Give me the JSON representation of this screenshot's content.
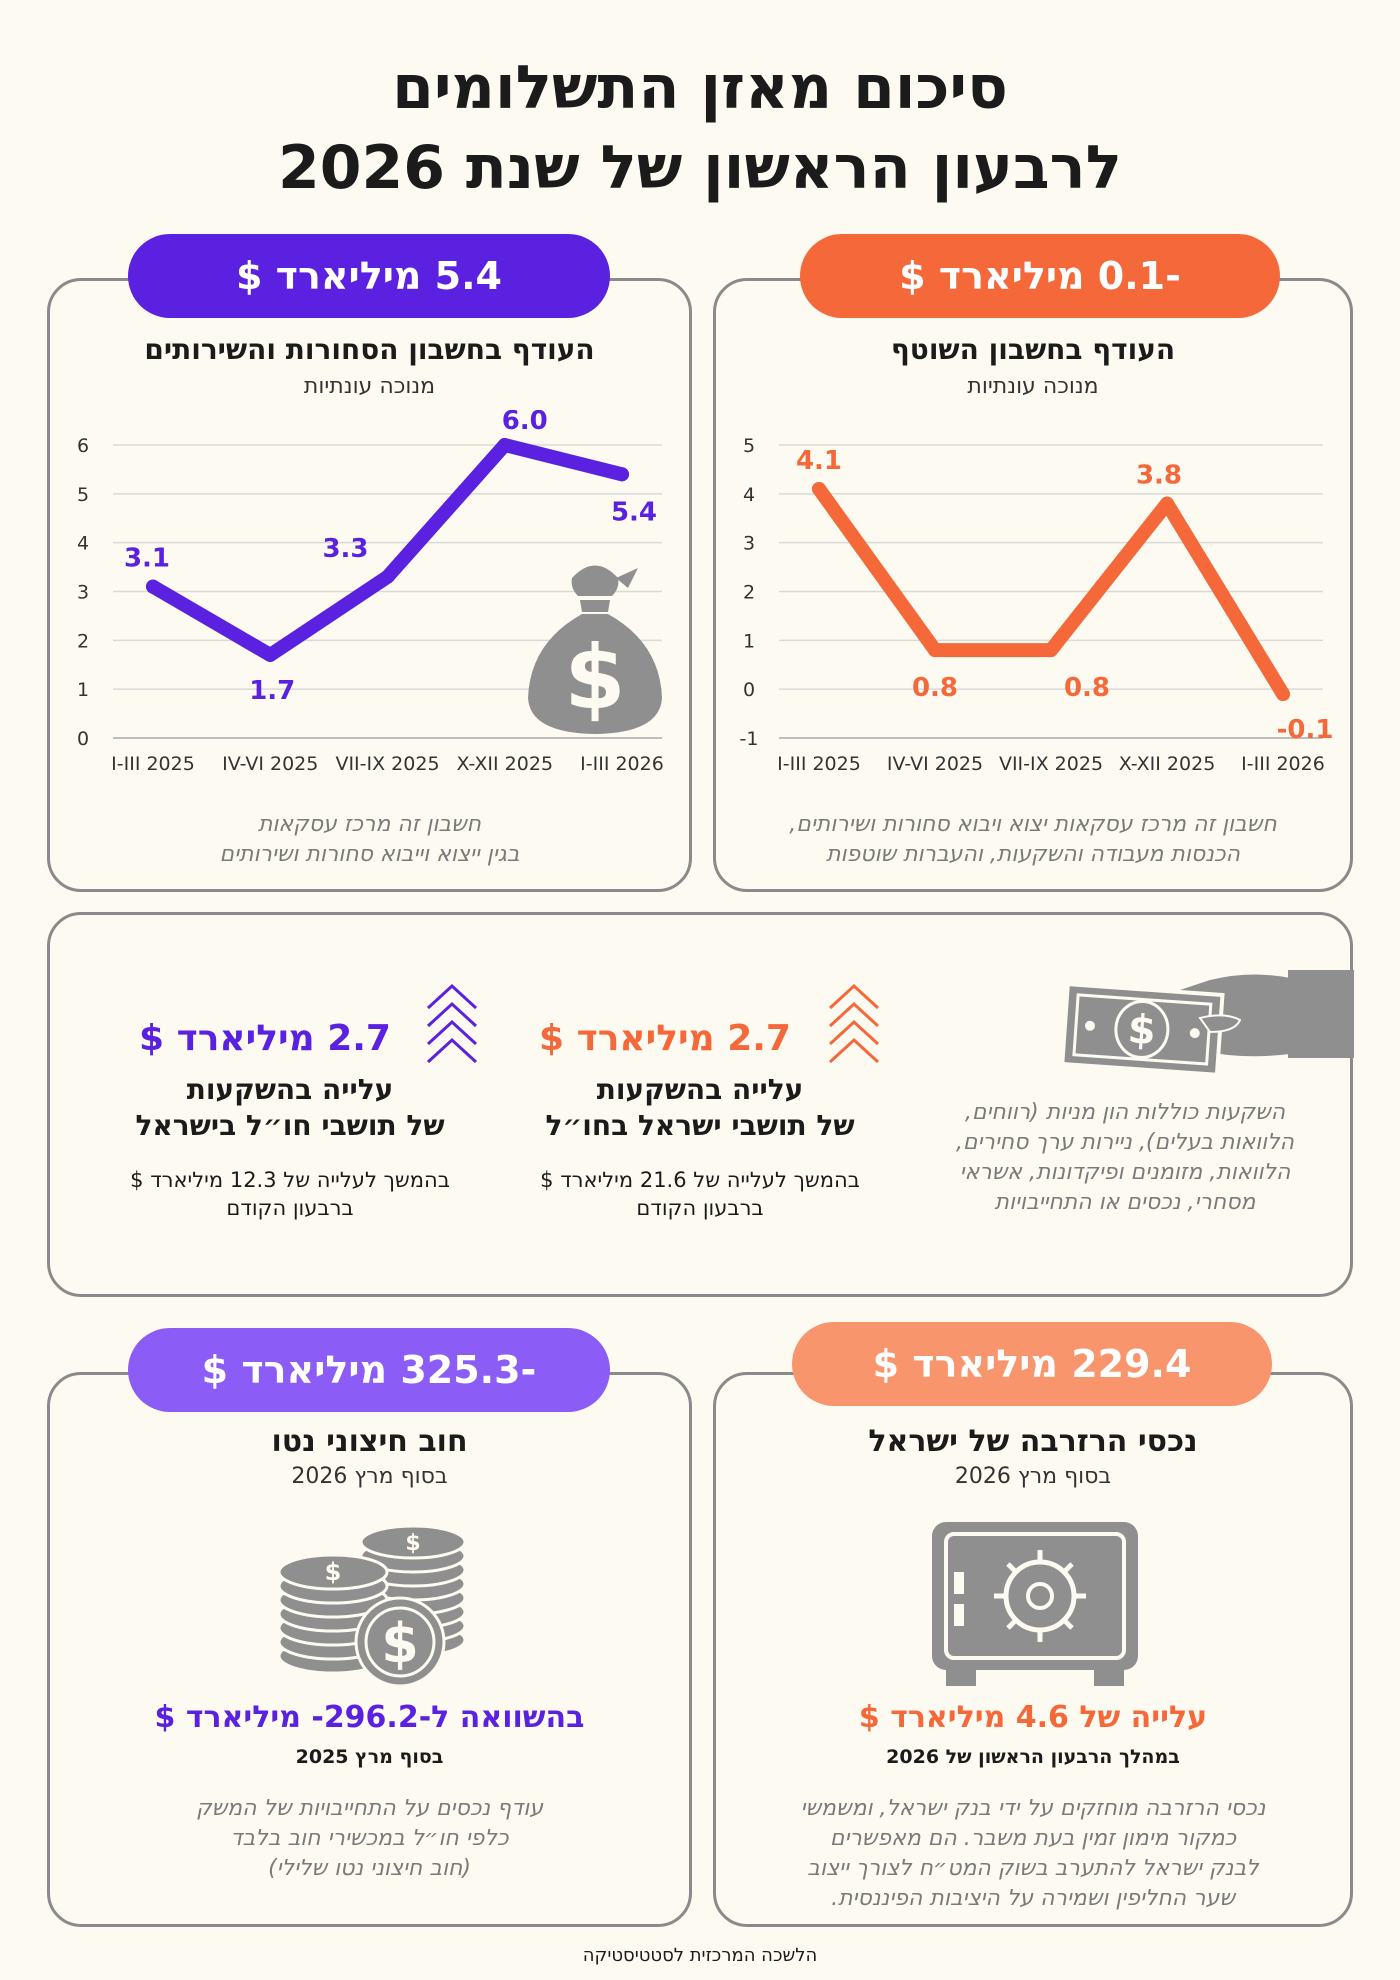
{
  "title_line1": "סיכום מאזן התשלומים",
  "title_line2": "לרבעון הראשון של שנת 2026",
  "footer": "הלשכה המרכזית לסטטיסטיקה",
  "colors": {
    "orange": "#f4683a",
    "purple": "#5b21e0",
    "light_purple": "#8b5cf6",
    "light_orange": "#f8956c",
    "gray_icon": "#8f8f8f"
  },
  "current_account": {
    "pill": "-0.1 מיליארד $",
    "title": "העודף בחשבון השוטף",
    "subtitle": "מנוכה עונתיות",
    "note_line1": "חשבון זה מרכז עסקאות יצוא ויבוא סחורות ושירותים,",
    "note_line2": "הכנסות מעבודה והשקעות, והעברות שוטפות"
  },
  "goods_services": {
    "pill": "5.4 מיליארד $",
    "title": "העודף בחשבון הסחורות והשירותים",
    "subtitle": "מנוכה עונתיות",
    "note_line1": "חשבון זה מרכז עסקאות",
    "note_line2": "בגין ייצוא וייבוא סחורות ושירותים",
    "icon": "money-bag-icon"
  },
  "chart_data": [
    {
      "type": "line",
      "categories": [
        "I-III 2025",
        "IV-VI 2025",
        "VII-IX 2025",
        "X-XII 2025",
        "I-III 2026"
      ],
      "values": [
        4.1,
        0.8,
        0.8,
        3.8,
        -0.1
      ],
      "value_labels": [
        "4.1",
        "0.8",
        "0.8",
        "3.8",
        "-0.1"
      ],
      "yticks": [
        "-1",
        "0",
        "1",
        "2",
        "3",
        "4",
        "5"
      ],
      "ylim": [
        -1,
        5
      ],
      "grid": true,
      "color": "#f4683a"
    },
    {
      "type": "line",
      "categories": [
        "I-III 2025",
        "IV-VI 2025",
        "VII-IX 2025",
        "X-XII 2025",
        "I-III 2026"
      ],
      "values": [
        3.1,
        1.7,
        3.3,
        6.0,
        5.4
      ],
      "value_labels": [
        "3.1",
        "1.7",
        "3.3",
        "6.0",
        "5.4"
      ],
      "yticks": [
        "0",
        "1",
        "2",
        "3",
        "4",
        "5",
        "6"
      ],
      "ylim": [
        0,
        6
      ],
      "grid": true,
      "color": "#5b21e0"
    }
  ],
  "investments": {
    "note_lines": [
      "השקעות כוללות הון מניות (רווחים,",
      "הלוואות בעלים), ניירות ערך סחירים,",
      "הלוואות, מזומנים ופיקדונות, אשראי",
      "מסחרי, נכסים או התחייבויות"
    ],
    "israeli_abroad": {
      "value": "2.7 מיליארד $",
      "title_line1": "עלייה בהשקעות",
      "title_line2": "של תושבי ישראל בחו״ל",
      "desc_line1": "בהמשך לעלייה של 21.6 מיליארד $",
      "desc_line2": "ברבעון הקודם"
    },
    "foreign_in_israel": {
      "value": "2.7 מיליארד $",
      "title_line1": "עלייה בהשקעות",
      "title_line2": "של תושבי חו״ל בישראל",
      "desc_line1": "בהמשך לעלייה של 12.3 מיליארד $",
      "desc_line2": "ברבעון הקודם"
    }
  },
  "reserves": {
    "pill": "229.4 מיליארד $",
    "title": "נכסי הרזרבה של ישראל",
    "subtitle": "בסוף מרץ 2026",
    "change": "עלייה של 4.6 מיליארד $",
    "change_sub": "במהלך הרבעון הראשון של 2026",
    "note_lines": [
      "נכסי הרזרבה מוחזקים על ידי בנק ישראל, ומשמשי",
      "כמקור מימון זמין בעת משבר. הם מאפשרים",
      "לבנק ישראל להתערב בשוק המט״ח לצורך ייצוב",
      "שער החליפין ושמירה על היציבות הפיננסית."
    ]
  },
  "net_debt": {
    "pill": "-325.3 מיליארד $",
    "title": "חוב חיצוני נטו",
    "subtitle": "בסוף מרץ 2026",
    "compare": "בהשוואה ל-296.2- מיליארד $",
    "compare_sub": "בסוף מרץ 2025",
    "note_lines": [
      "עודף נכסים על התחייבויות של המשק",
      "כלפי חו״ל במכשירי חוב בלבד",
      "(חוב חיצוני נטו שלילי)"
    ]
  }
}
